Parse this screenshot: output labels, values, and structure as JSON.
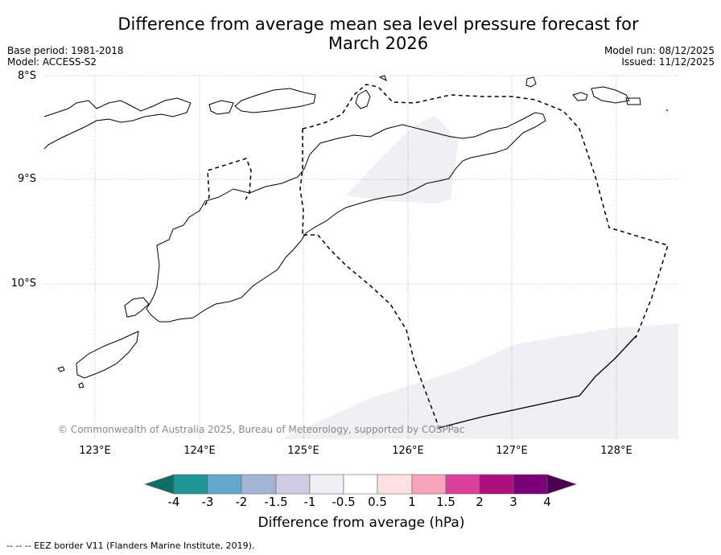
{
  "title_line1": "Difference from average mean sea level pressure forecast for",
  "title_line2": "March 2026",
  "meta": {
    "base_period": "Base period: 1981-2018",
    "model": "Model: ACCESS-S2",
    "model_run": "Model run: 08/12/2025",
    "issued": "Issued: 11/12/2025"
  },
  "lat_labels": [
    "8°S",
    "9°S",
    "10°S"
  ],
  "lon_labels": [
    "123°E",
    "124°E",
    "125°E",
    "126°E",
    "127°E",
    "128°E"
  ],
  "copyright": "© Commonwealth of Australia 2025, Bureau of Meteorology, supported by COSPPac",
  "colorbar": {
    "ticks": [
      "-4",
      "-3",
      "-2",
      "-1.5",
      "-1",
      "-0.5",
      "0.5",
      "1",
      "1.5",
      "2",
      "3",
      "4"
    ],
    "colors": [
      "#0f6e64",
      "#1f9599",
      "#64a8cc",
      "#a4b4d6",
      "#cdcce2",
      "#f2eef5",
      "#ffffff",
      "#fde0df",
      "#f8a3bb",
      "#dd3f9e",
      "#ad0f7c",
      "#7a0177",
      "#4d0050"
    ],
    "label": "Difference from average (hPa)"
  },
  "footer": "-- -- -- EEZ border V11 (Flanders Marine Institute, 2019).",
  "map_data": {
    "lat_range": [
      -11.5,
      -8.0
    ],
    "lon_range": [
      122.5,
      128.6
    ],
    "shaded_regions": [
      {
        "name": "timor-anomaly",
        "class": "-1 to -0.5",
        "color": "#f2eef5"
      },
      {
        "name": "southern-anomaly",
        "class": "-1 to -0.5",
        "color": "#f2eef5"
      }
    ]
  }
}
